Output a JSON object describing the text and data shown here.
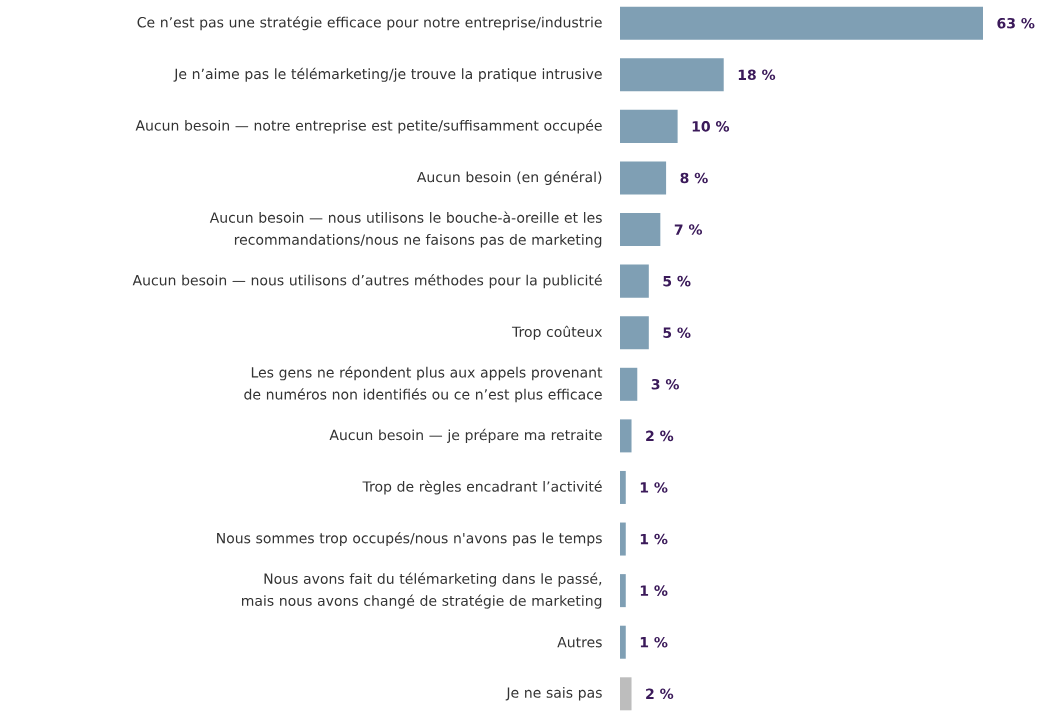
{
  "chart_data": {
    "type": "bar",
    "orientation": "horizontal",
    "categories": [
      "Ce n’est pas une stratégie efficace pour notre entreprise/industrie",
      "Je n’aime pas le télémarketing/je trouve la pratique intrusive",
      "Aucun besoin — notre entreprise est petite/suffisamment occupée",
      "Aucun besoin (en général)",
      "Aucun besoin — nous utilisons le bouche-à-oreille et les recommandations/nous ne faisons pas de marketing",
      "Aucun besoin — nous utilisons d’autres méthodes pour la publicité",
      "Trop coûteux",
      "Les gens ne répondent plus aux appels provenant de numéros non identifiés ou ce n’est plus efficace",
      "Aucun besoin — je prépare ma retraite",
      "Trop de règles encadrant l’activité",
      "Nous sommes trop occupés/nous n'avons pas le temps",
      "Nous avons fait du télémarketing dans le passé, mais nous avons changé de stratégie de marketing",
      "Autres",
      "Je ne sais pas"
    ],
    "values": [
      63,
      18,
      10,
      8,
      7,
      5,
      5,
      3,
      2,
      1,
      1,
      1,
      1,
      2
    ],
    "colors": [
      "#7f9fb4",
      "#7f9fb4",
      "#7f9fb4",
      "#7f9fb4",
      "#7f9fb4",
      "#7f9fb4",
      "#7f9fb4",
      "#7f9fb4",
      "#7f9fb4",
      "#7f9fb4",
      "#7f9fb4",
      "#7f9fb4",
      "#7f9fb4",
      "#bdbdbd"
    ],
    "value_labels": [
      "63 %",
      "18 %",
      "10 %",
      "8 %",
      "7 %",
      "5 %",
      "5 %",
      "3 %",
      "2 %",
      "1 %",
      "1 %",
      "1 %",
      "1 %",
      "2 %"
    ]
  }
}
